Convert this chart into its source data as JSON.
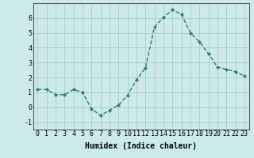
{
  "x": [
    0,
    1,
    2,
    3,
    4,
    5,
    6,
    7,
    8,
    9,
    10,
    11,
    12,
    13,
    14,
    15,
    16,
    17,
    18,
    19,
    20,
    21,
    22,
    23
  ],
  "y": [
    1.2,
    1.2,
    0.85,
    0.85,
    1.2,
    1.0,
    -0.1,
    -0.55,
    -0.2,
    0.15,
    0.8,
    1.85,
    2.65,
    5.4,
    6.05,
    6.55,
    6.25,
    5.0,
    4.4,
    3.6,
    2.7,
    2.55,
    2.4,
    2.1
  ],
  "line_color": "#2e7d6e",
  "marker": "D",
  "marker_size": 2.0,
  "line_width": 1.0,
  "bg_color": "#cdeaea",
  "grid_color": "#aacccc",
  "xlabel": "Humidex (Indice chaleur)",
  "xlabel_fontsize": 7,
  "xlabel_fontweight": "bold",
  "tick_fontsize": 6,
  "xlim": [
    -0.5,
    23.5
  ],
  "ylim": [
    -1.5,
    7.0
  ],
  "yticks": [
    -1,
    0,
    1,
    2,
    3,
    4,
    5,
    6
  ],
  "xticks": [
    0,
    1,
    2,
    3,
    4,
    5,
    6,
    7,
    8,
    9,
    10,
    11,
    12,
    13,
    14,
    15,
    16,
    17,
    18,
    19,
    20,
    21,
    22,
    23
  ]
}
